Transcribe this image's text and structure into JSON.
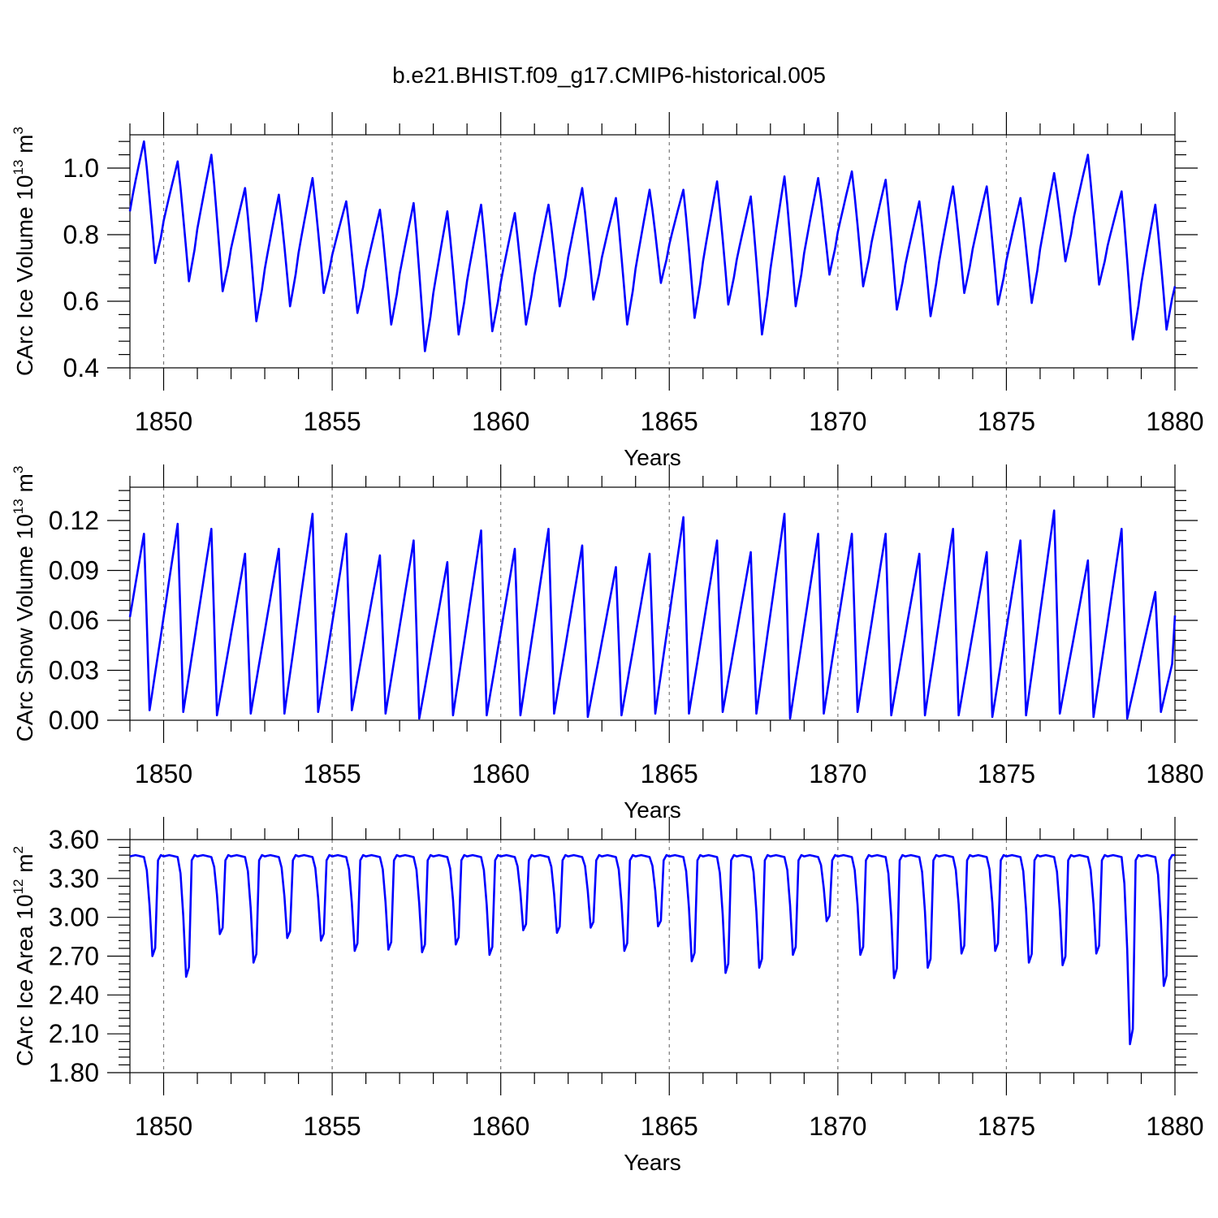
{
  "figure": {
    "title": "b.e21.BHIST.f09_g17.CMIP6-historical.005",
    "line_color": "#0000ff"
  },
  "chart_data": [
    {
      "type": "line",
      "title": "",
      "xlabel": "Years",
      "ylabel": {
        "text": "CArc Ice Volume 10",
        "sup": "13",
        "unit": " m",
        "unit_sup": "3"
      },
      "xlim": [
        1849.0,
        1880.0
      ],
      "ylim": [
        0.4,
        1.1
      ],
      "xticks": [
        1850,
        1855,
        1860,
        1865,
        1870,
        1875,
        1880
      ],
      "xtick_labels": [
        "1850",
        "1855",
        "1860",
        "1865",
        "1870",
        "1875",
        "1880"
      ],
      "yticks": [
        0.4,
        0.6,
        0.8,
        1.0
      ],
      "ytick_labels": [
        "0.4",
        "0.6",
        "0.8",
        "1.0"
      ],
      "grid": "dashed vertical at major x ticks",
      "series": [
        {
          "name": "CArc Ice Volume",
          "annual_max": [
            1.08,
            1.02,
            1.04,
            0.94,
            0.92,
            0.97,
            0.9,
            0.875,
            0.895,
            0.87,
            0.89,
            0.865,
            0.89,
            0.94,
            0.91,
            0.935,
            0.935,
            0.96,
            0.915,
            0.975,
            0.97,
            0.99,
            0.965,
            0.9,
            0.945,
            0.945,
            0.91,
            0.985,
            1.04,
            0.93,
            0.89
          ],
          "annual_min": [
            0.715,
            0.66,
            0.63,
            0.54,
            0.585,
            0.625,
            0.565,
            0.53,
            0.45,
            0.5,
            0.51,
            0.53,
            0.585,
            0.605,
            0.53,
            0.655,
            0.55,
            0.59,
            0.5,
            0.585,
            0.68,
            0.645,
            0.575,
            0.555,
            0.625,
            0.59,
            0.595,
            0.72,
            0.65,
            0.485,
            0.515
          ],
          "start_value": 0.87,
          "end_value": 0.645
        }
      ]
    },
    {
      "type": "line",
      "title": "",
      "xlabel": "Years",
      "ylabel": {
        "text": "CArc Snow Volume 10",
        "sup": "13",
        "unit": " m",
        "unit_sup": "3"
      },
      "xlim": [
        1849.0,
        1880.0
      ],
      "ylim": [
        0.0,
        0.14
      ],
      "xticks": [
        1850,
        1855,
        1860,
        1865,
        1870,
        1875,
        1880
      ],
      "xtick_labels": [
        "1850",
        "1855",
        "1860",
        "1865",
        "1870",
        "1875",
        "1880"
      ],
      "yticks": [
        0.0,
        0.03,
        0.06,
        0.09,
        0.12
      ],
      "ytick_labels": [
        "0.00",
        "0.03",
        "0.06",
        "0.09",
        "0.12"
      ],
      "grid": "dashed vertical at major x ticks",
      "series": [
        {
          "name": "CArc Snow Volume",
          "annual_max": [
            0.112,
            0.118,
            0.115,
            0.1,
            0.103,
            0.124,
            0.112,
            0.099,
            0.108,
            0.095,
            0.114,
            0.103,
            0.115,
            0.105,
            0.092,
            0.1,
            0.122,
            0.108,
            0.101,
            0.124,
            0.112,
            0.112,
            0.112,
            0.1,
            0.115,
            0.101,
            0.108,
            0.126,
            0.096,
            0.115,
            0.077
          ],
          "annual_min": [
            0.006,
            0.005,
            0.003,
            0.004,
            0.004,
            0.005,
            0.006,
            0.004,
            0.001,
            0.003,
            0.003,
            0.003,
            0.004,
            0.002,
            0.003,
            0.004,
            0.004,
            0.005,
            0.004,
            0.001,
            0.004,
            0.005,
            0.003,
            0.003,
            0.003,
            0.002,
            0.003,
            0.004,
            0.002,
            0.001,
            0.005
          ],
          "start_value": 0.062,
          "end_value": 0.063
        }
      ]
    },
    {
      "type": "line",
      "title": "",
      "xlabel": "Years",
      "ylabel": {
        "text": "CArc Ice Area 10",
        "sup": "12",
        "unit": " m",
        "unit_sup": "2"
      },
      "xlim": [
        1849.0,
        1880.0
      ],
      "ylim": [
        1.8,
        3.6
      ],
      "xticks": [
        1850,
        1855,
        1860,
        1865,
        1870,
        1875,
        1880
      ],
      "xtick_labels": [
        "1850",
        "1855",
        "1860",
        "1865",
        "1870",
        "1875",
        "1880"
      ],
      "yticks": [
        1.8,
        2.1,
        2.4,
        2.7,
        3.0,
        3.3,
        3.6
      ],
      "ytick_labels": [
        "1.80",
        "2.10",
        "2.40",
        "2.70",
        "3.00",
        "3.30",
        "3.60"
      ],
      "grid": "dashed vertical at major x ticks",
      "series": [
        {
          "name": "CArc Ice Area",
          "annual_max": [
            3.48,
            3.48,
            3.48,
            3.48,
            3.48,
            3.48,
            3.48,
            3.48,
            3.48,
            3.48,
            3.48,
            3.48,
            3.48,
            3.48,
            3.48,
            3.48,
            3.48,
            3.48,
            3.48,
            3.48,
            3.48,
            3.48,
            3.48,
            3.48,
            3.48,
            3.48,
            3.48,
            3.48,
            3.48,
            3.48,
            3.48
          ],
          "annual_min": [
            2.7,
            2.54,
            2.87,
            2.65,
            2.84,
            2.82,
            2.74,
            2.75,
            2.73,
            2.79,
            2.71,
            2.9,
            2.88,
            2.92,
            2.74,
            2.93,
            2.66,
            2.57,
            2.61,
            2.71,
            2.97,
            2.71,
            2.53,
            2.61,
            2.72,
            2.74,
            2.65,
            2.63,
            2.72,
            2.02,
            2.47
          ],
          "start_value": 3.48,
          "end_value": 3.48
        }
      ]
    }
  ]
}
